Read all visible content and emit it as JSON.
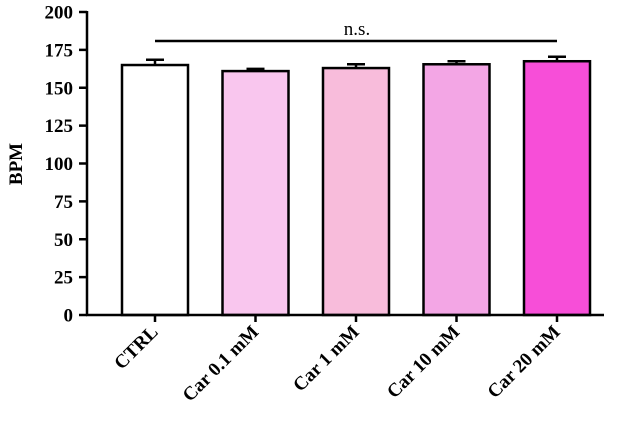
{
  "chart_data": {
    "type": "bar",
    "ylabel": "BPM",
    "ylim": [
      0,
      200
    ],
    "yticks": [
      "0",
      "25",
      "50",
      "75",
      "100",
      "125",
      "150",
      "175",
      "200"
    ],
    "categories": [
      "CTRL",
      "Car 0.1 mM",
      "Car 1 mM",
      "Car 10 mM",
      "Car 20 mM"
    ],
    "values": [
      165,
      161,
      163,
      165.5,
      167.5
    ],
    "errors": [
      3.5,
      1.5,
      2.5,
      2,
      3
    ],
    "bar_colors": [
      "#ffffff",
      "#f9c6ee",
      "#f8bcdb",
      "#f3a6e5",
      "#f74ed8"
    ],
    "significance": {
      "label": "n.s."
    },
    "grid": false,
    "legend": "none"
  }
}
